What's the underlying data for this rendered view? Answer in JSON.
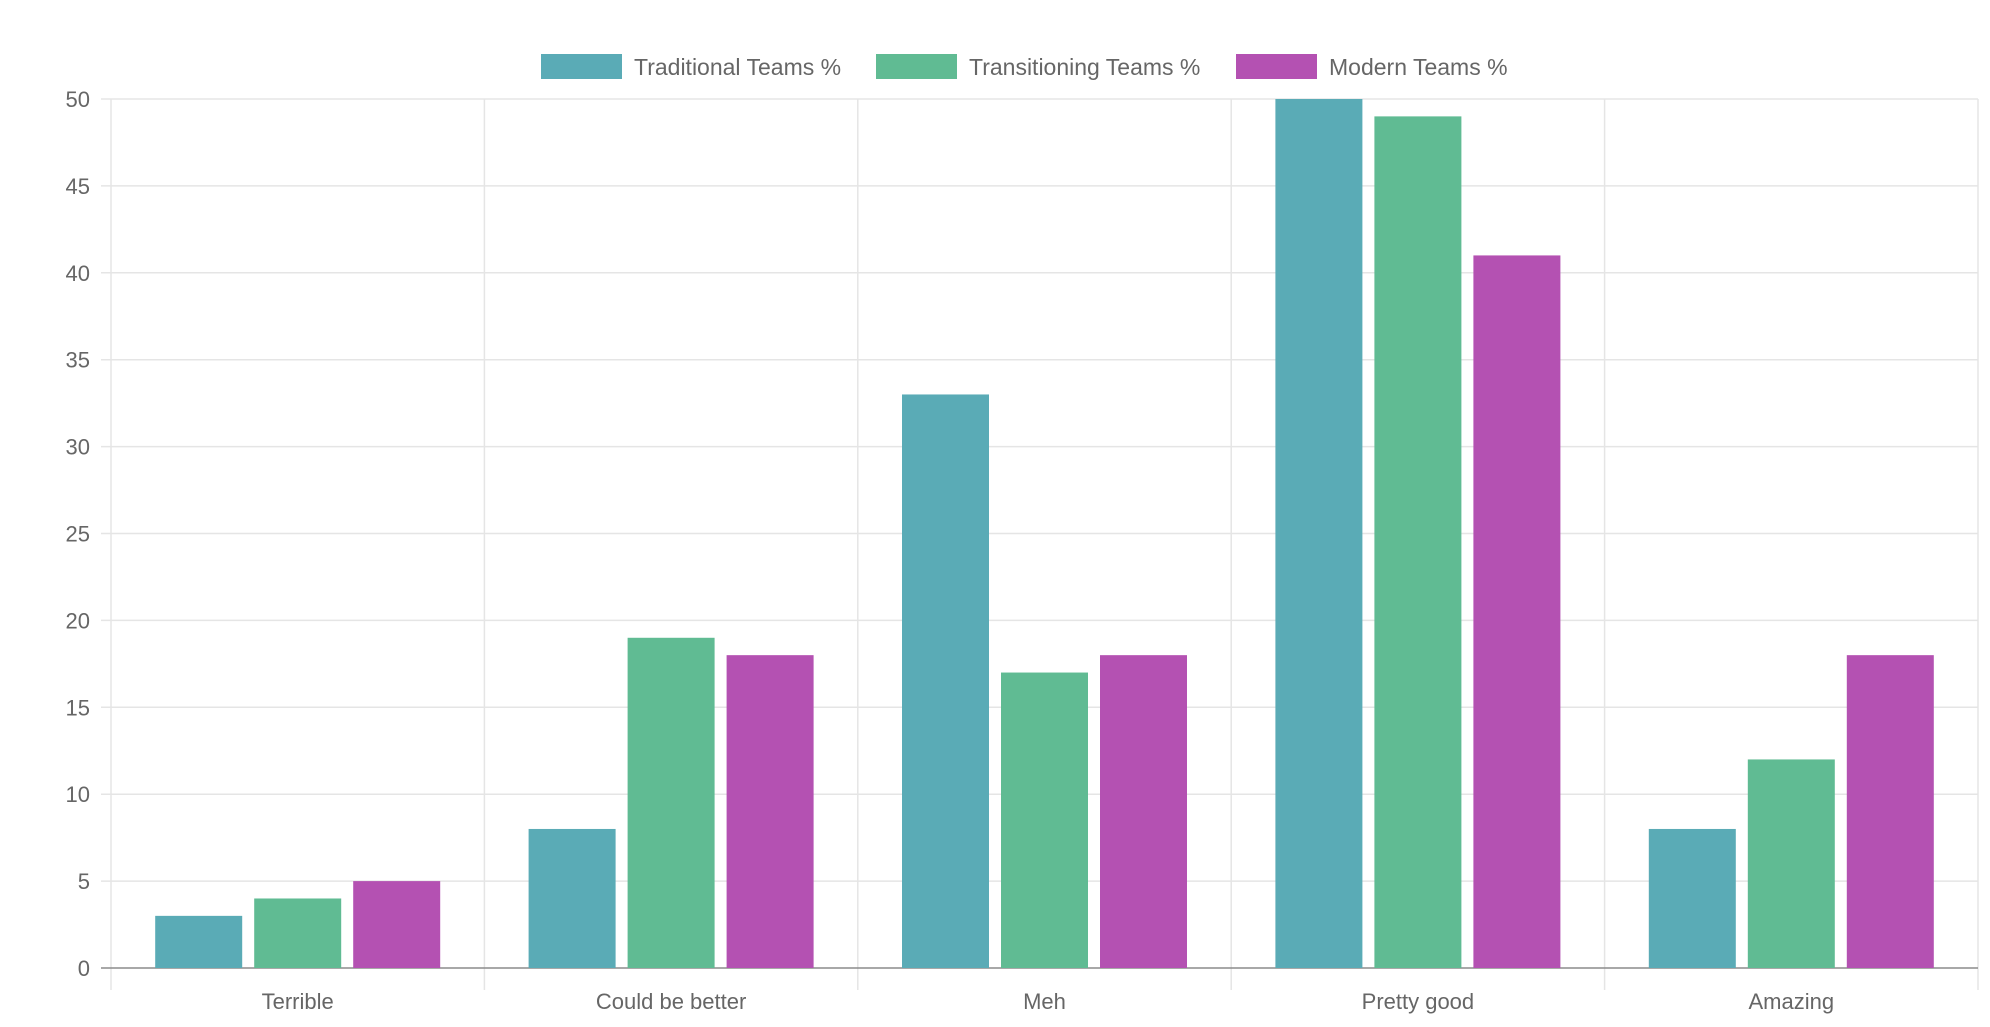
{
  "chart_data": {
    "type": "bar",
    "title": "",
    "xlabel": "",
    "ylabel": "",
    "categories": [
      "Terrible",
      "Could be better",
      "Meh",
      "Pretty good",
      "Amazing"
    ],
    "series": [
      {
        "name": "Traditional Teams %",
        "color": "#5aabb6",
        "values": [
          3,
          8,
          33,
          50,
          8
        ]
      },
      {
        "name": "Transitioning Teams %",
        "color": "#60bb93",
        "values": [
          4,
          19,
          17,
          49,
          12
        ]
      },
      {
        "name": "Modern Teams %",
        "color": "#b451b2",
        "values": [
          5,
          18,
          18,
          41,
          18
        ]
      }
    ],
    "ylim": [
      0,
      50
    ],
    "yticks": [
      0,
      5,
      10,
      15,
      20,
      25,
      30,
      35,
      40,
      45,
      50
    ],
    "grid": true,
    "legend_position": "top-center"
  }
}
